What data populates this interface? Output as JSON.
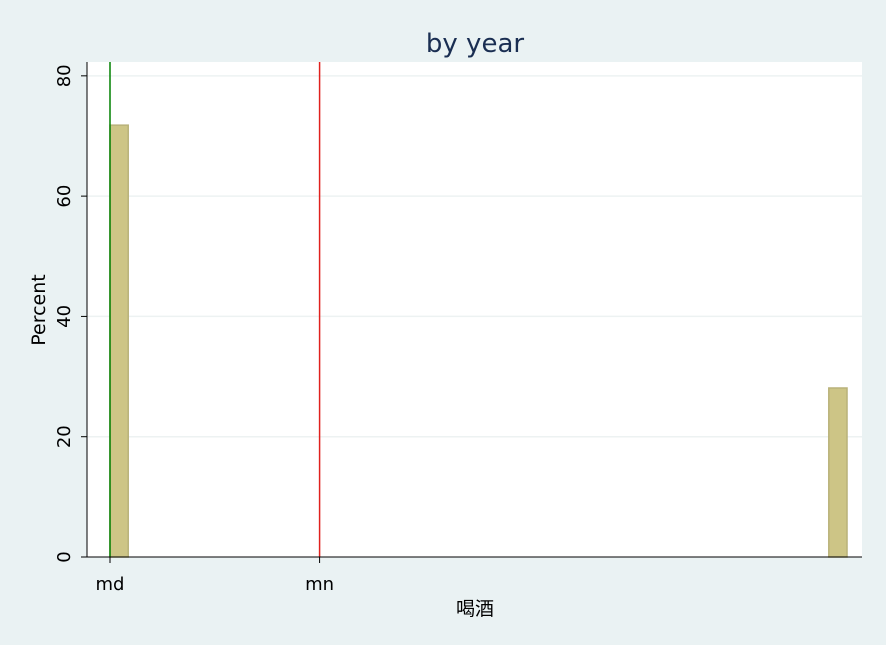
{
  "chart_data": {
    "type": "bar",
    "title": "by year",
    "xlabel": "喝酒",
    "ylabel": "Percent",
    "ylim": [
      0,
      82.3
    ],
    "y_ticks": [
      "0",
      "20",
      "40",
      "60",
      "80"
    ],
    "y_tick_values": [
      0,
      20,
      40,
      60,
      80
    ],
    "xlim": [
      0,
      1.0
    ],
    "x_tick_labels": [
      "md",
      "mn"
    ],
    "x_tick_positions": [
      0.0,
      0.2875
    ],
    "bar_width": 0.025,
    "bars": [
      {
        "x": 0.0,
        "value": 71.8
      },
      {
        "x": 0.9985,
        "value": 28.1
      }
    ],
    "reference_lines": [
      {
        "name": "md",
        "x": 0.0,
        "color": "#008000"
      },
      {
        "name": "mn",
        "x": 0.2875,
        "color": "#e0211d"
      }
    ],
    "grid": true,
    "colors": {
      "bar_fill": "#cdc586",
      "bar_stroke": "#b9b27a",
      "plot_bg": "#ffffff",
      "outer_bg": "#eaf2f3",
      "grid": "#edf2f2",
      "title": "#1a2e52"
    }
  }
}
